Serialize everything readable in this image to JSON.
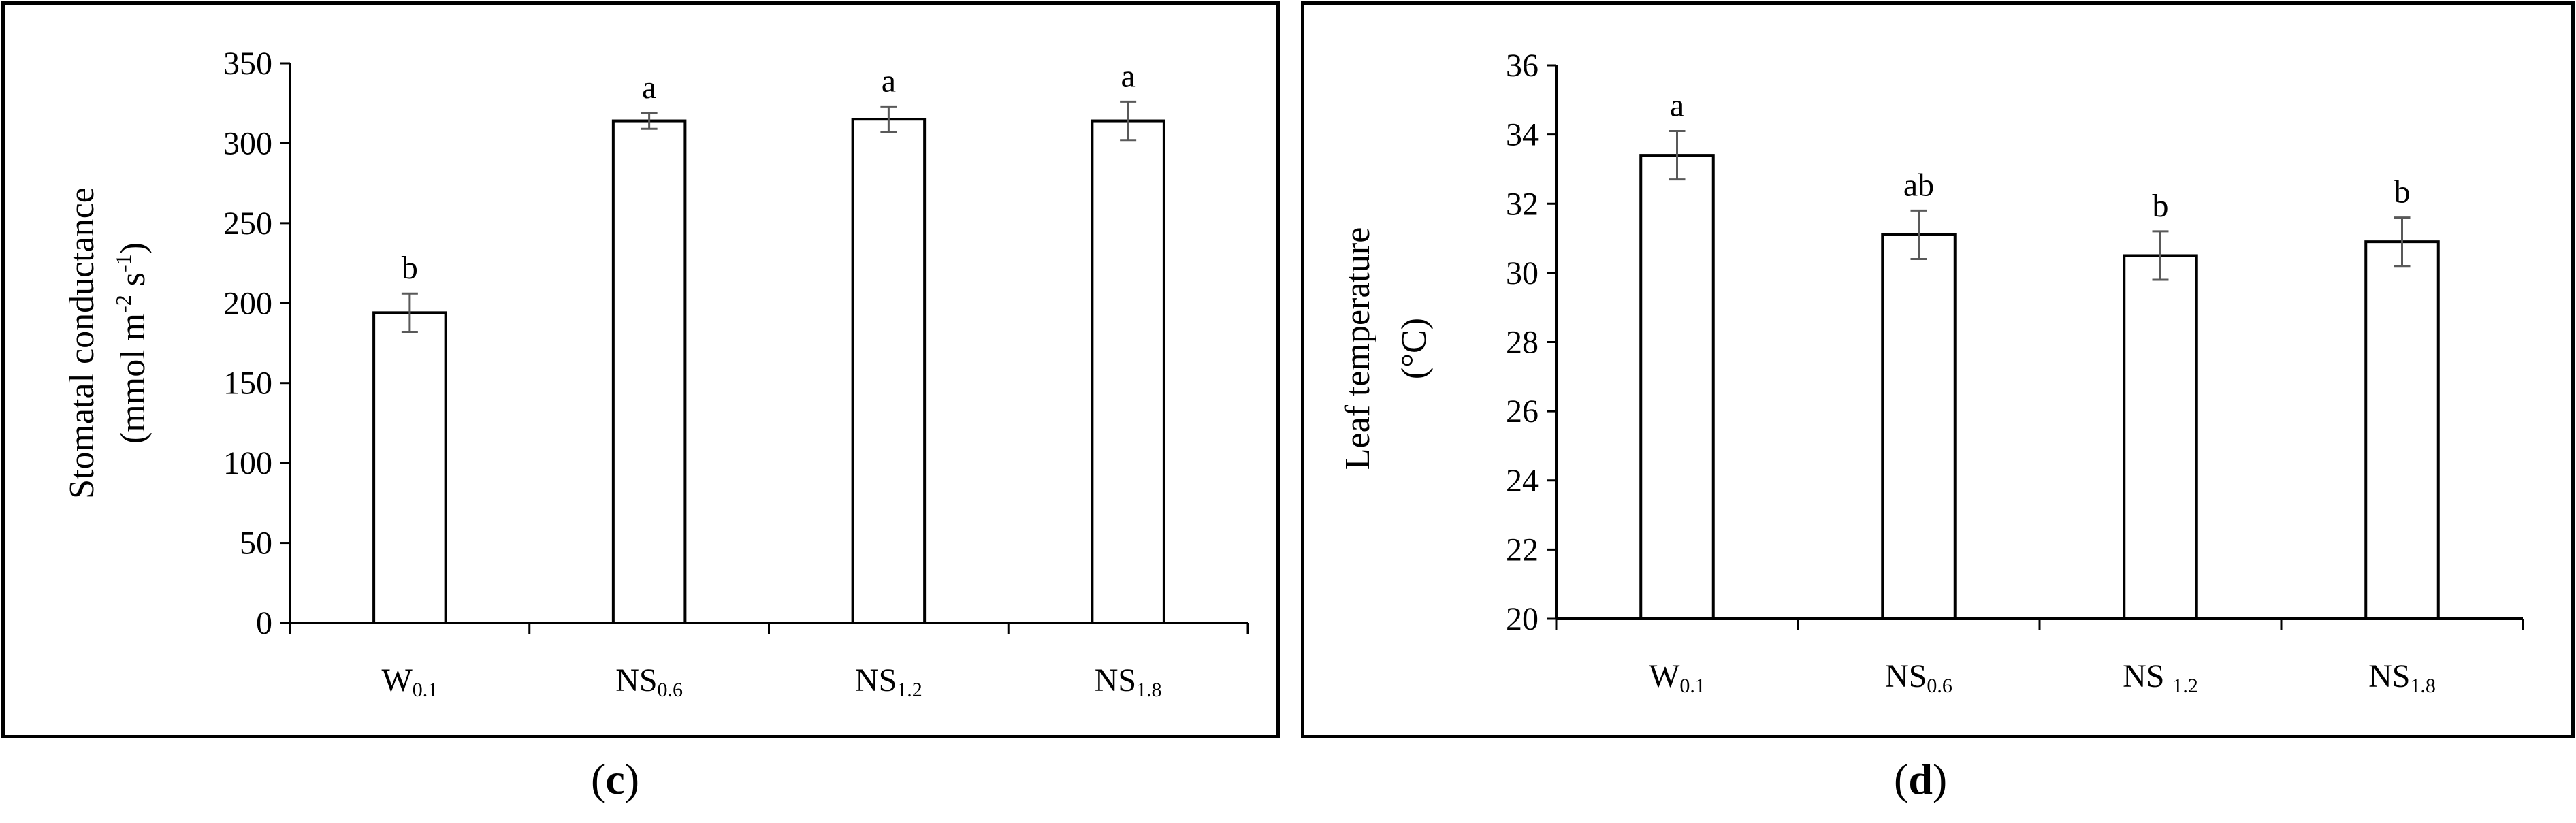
{
  "chart_data": [
    {
      "panel_label": "c",
      "type": "bar",
      "categories": [
        {
          "base": "W",
          "sub": "0.1"
        },
        {
          "base": "NS",
          "sub": "0.6"
        },
        {
          "base": "NS",
          "sub": "1.2"
        },
        {
          "base": "NS",
          "sub": "1.8"
        }
      ],
      "values": [
        194,
        314,
        315,
        314
      ],
      "errors": [
        12,
        5,
        8,
        12
      ],
      "letters": [
        "b",
        "a",
        "a",
        "a"
      ],
      "ylabel_line1": "Stomatal conductance",
      "ylabel_line2": {
        "a": "(mmol m",
        "b": "-2",
        "c": " s",
        "d": "-1",
        "e": ")"
      },
      "ylim": [
        0,
        350
      ],
      "yticks": [
        0,
        50,
        100,
        150,
        200,
        250,
        300,
        350
      ],
      "grid": false,
      "legend": "none",
      "bar_color": "#ffffff",
      "error_color": "#595959"
    },
    {
      "panel_label": "d",
      "type": "bar",
      "categories": [
        {
          "base": "W",
          "sub": "0.1"
        },
        {
          "base": "NS",
          "sub": "0.6"
        },
        {
          "base": "NS ",
          "sub": "1.2"
        },
        {
          "base": "NS",
          "sub": "1.8"
        }
      ],
      "values": [
        33.4,
        31.1,
        30.5,
        30.9
      ],
      "errors": [
        0.7,
        0.7,
        0.7,
        0.7
      ],
      "letters": [
        "a",
        "ab",
        "b",
        "b"
      ],
      "ylabel_line1": "Leaf temperature",
      "ylabel_line2": {
        "a": "(°C)"
      },
      "ylim": [
        20,
        36
      ],
      "yticks": [
        20,
        22,
        24,
        26,
        28,
        30,
        32,
        34,
        36
      ],
      "grid": false,
      "legend": "none",
      "bar_color": "#ffffff",
      "error_color": "#595959"
    }
  ]
}
